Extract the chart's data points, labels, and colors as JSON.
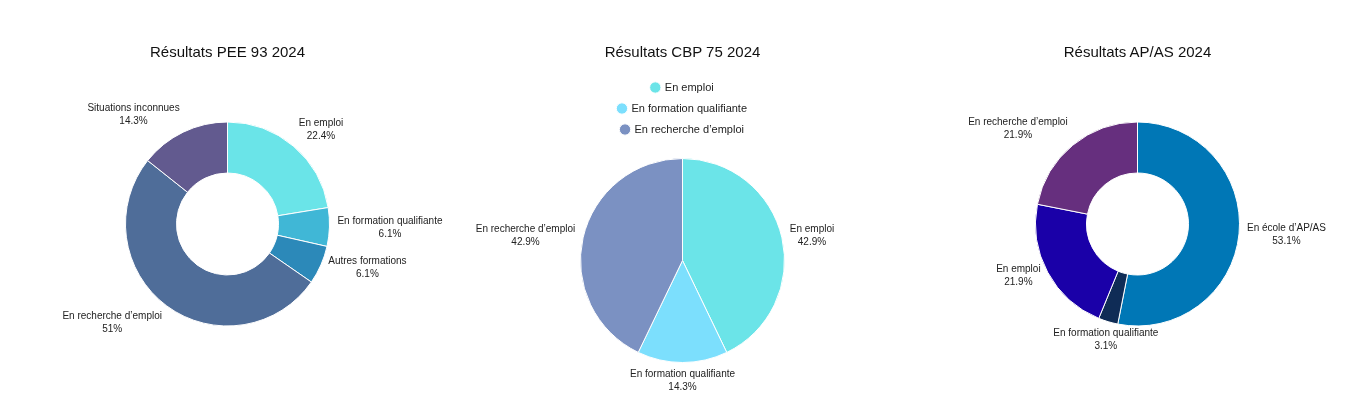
{
  "chart_data": [
    {
      "type": "donut",
      "title": "Résultats PEE 93 2024",
      "categories": [
        "En emploi",
        "En formation qualifiante",
        "Autres formations",
        "En recherche d’emploi",
        "Situations inconnues"
      ],
      "values": [
        22.4,
        6.1,
        6.1,
        51,
        14.3
      ],
      "value_labels": [
        "22.4%",
        "6.1%",
        "6.1%",
        "51%",
        "14.3%"
      ],
      "colors": [
        "#6ae4e8",
        "#40b7d6",
        "#2c89b9",
        "#4f6d99",
        "#625a8f"
      ],
      "legend": false
    },
    {
      "type": "pie",
      "title": "Résultats CBP 75 2024",
      "categories": [
        "En emploi",
        "En formation qualifiante",
        "En recherche d’emploi"
      ],
      "values": [
        42.9,
        14.3,
        42.9
      ],
      "value_labels": [
        "42.9%",
        "14.3%",
        "42.9%"
      ],
      "colors": [
        "#6be4e8",
        "#7cdffd",
        "#7b91c2"
      ],
      "legend": "top"
    },
    {
      "type": "donut",
      "title": "Résultats AP/AS 2024",
      "categories": [
        "En école d’AP/AS",
        "En formation qualifiante",
        "En emploi",
        "En recherche d’emploi"
      ],
      "values": [
        53.1,
        3.1,
        21.9,
        21.9
      ],
      "value_labels": [
        "53.1%",
        "3.1%",
        "21.9%",
        "21.9%"
      ],
      "colors": [
        "#0077b6",
        "#0f2c56",
        "#1a00a8",
        "#662f7e"
      ],
      "legend": false
    }
  ]
}
